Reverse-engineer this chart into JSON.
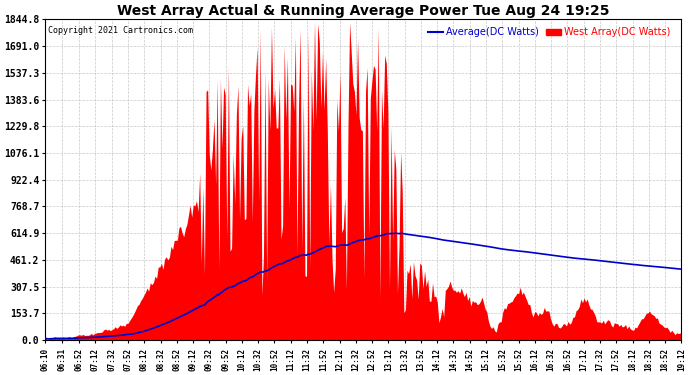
{
  "title": "West Array Actual & Running Average Power Tue Aug 24 19:25",
  "copyright": "Copyright 2021 Cartronics.com",
  "legend_avg": "Average(DC Watts)",
  "legend_west": "West Array(DC Watts)",
  "ymax": 1844.8,
  "ymin": 0.0,
  "yticks": [
    0.0,
    153.7,
    307.5,
    461.2,
    614.9,
    768.7,
    922.4,
    1076.1,
    1229.8,
    1383.6,
    1537.3,
    1691.0,
    1844.8
  ],
  "bg_color": "#ffffff",
  "grid_color": "#bbbbbb",
  "west_color": "#ff0000",
  "avg_color": "#0000cc",
  "title_color": "#000000",
  "copyright_color": "#000000",
  "legend_avg_color": "#0000cc",
  "legend_west_color": "#ff0000",
  "xtick_labels": [
    "06:10",
    "06:31",
    "06:52",
    "07:12",
    "07:32",
    "07:52",
    "08:12",
    "08:32",
    "08:52",
    "09:12",
    "09:32",
    "09:52",
    "10:12",
    "10:32",
    "10:52",
    "11:12",
    "11:32",
    "11:52",
    "12:12",
    "12:32",
    "12:52",
    "13:12",
    "13:32",
    "13:52",
    "14:12",
    "14:32",
    "14:52",
    "15:12",
    "15:32",
    "15:52",
    "16:12",
    "16:32",
    "16:52",
    "17:12",
    "17:32",
    "17:52",
    "18:12",
    "18:32",
    "18:52",
    "19:12"
  ]
}
